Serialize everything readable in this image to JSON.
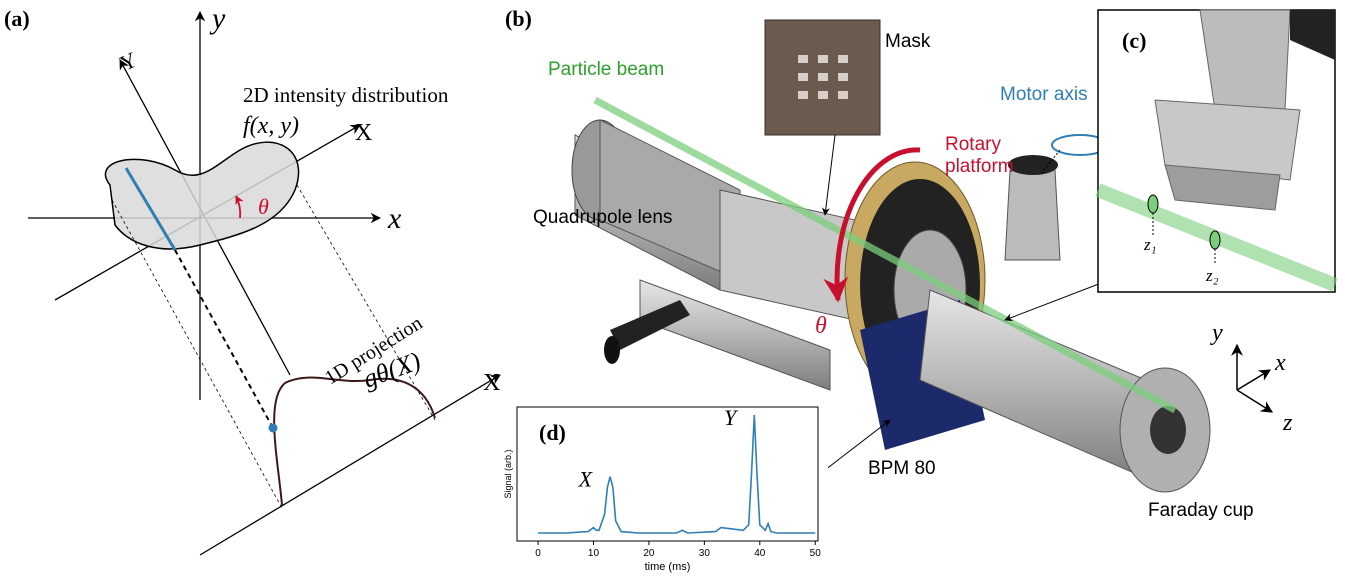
{
  "panel_a": {
    "label": "(a)",
    "axis_x": "x",
    "axis_y": "y",
    "axis_X": "X",
    "axis_Y": "Y",
    "distribution_label": "2D intensity distribution",
    "distribution_formula": "f(x, y)",
    "angle": "θ",
    "projection_label": "1D projection",
    "projection_formula": "gθ(X)",
    "projection_axis": "X"
  },
  "panel_b": {
    "label": "(b)",
    "particle_beam": "Particle beam",
    "mask": "Mask",
    "motor_axis": "Motor axis",
    "rotary": "Rotary",
    "platform": "platform",
    "quadrupole_lens": "Quadrupole lens",
    "angle": "θ",
    "bpm": "BPM 80",
    "faraday_cup": "Faraday cup"
  },
  "panel_c": {
    "label": "(c)",
    "z1": "z₁",
    "z2": "z₂"
  },
  "axes_triad": {
    "y": "y",
    "x": "x",
    "z": "z"
  },
  "chart_data": {
    "type": "line",
    "label": "(d)",
    "x_label": "time (ms)",
    "y_label": "Signal (arb.)",
    "peak_labels": [
      "X",
      "Y"
    ],
    "x": [
      0,
      5,
      9,
      10,
      10.5,
      11,
      12,
      12.5,
      13,
      13.5,
      14,
      15,
      18,
      25,
      26,
      27,
      32,
      33,
      35,
      37,
      38,
      38.5,
      39,
      39.5,
      40,
      41,
      41.5,
      42,
      43,
      45,
      50
    ],
    "values": [
      0.06,
      0.06,
      0.07,
      0.1,
      0.08,
      0.08,
      0.2,
      0.4,
      0.48,
      0.4,
      0.15,
      0.07,
      0.06,
      0.06,
      0.08,
      0.06,
      0.07,
      0.1,
      0.09,
      0.08,
      0.12,
      0.5,
      0.94,
      0.5,
      0.12,
      0.08,
      0.13,
      0.07,
      0.06,
      0.06,
      0.06
    ],
    "color": "#2f7fb5",
    "xlim": [
      -3.8,
      50.5
    ],
    "xticks": [
      0,
      10,
      20,
      30,
      40,
      50
    ],
    "ylim": [
      0,
      1
    ]
  }
}
